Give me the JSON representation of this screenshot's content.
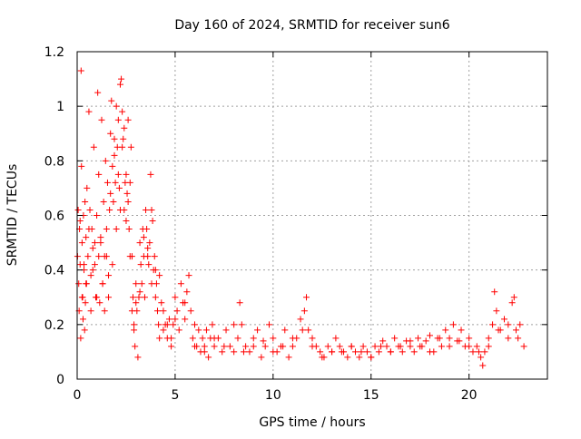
{
  "chart_data": {
    "type": "scatter",
    "title": "Day 160 of 2024, SRMTID for receiver sun6",
    "xlabel": "GPS time / hours",
    "ylabel": "SRMTID / TECUs",
    "xlim": [
      0,
      24
    ],
    "ylim": [
      0,
      1.2
    ],
    "grid": true,
    "marker": "+",
    "marker_color": "#ff0000",
    "x_ticks": [
      0,
      5,
      10,
      15,
      20
    ],
    "x_tick_labels": [
      "0",
      "5",
      "10",
      "15",
      "20"
    ],
    "y_ticks": [
      0,
      0.2,
      0.4,
      0.6,
      0.8,
      1.0,
      1.2
    ],
    "y_tick_labels": [
      "0",
      "0.2",
      "0.4",
      "0.6",
      "0.8",
      "1",
      "1.2"
    ],
    "series": [
      {
        "name": "SRMTID",
        "x": [
          0.02,
          0.05,
          0.08,
          0.1,
          0.12,
          0.15,
          0.18,
          0.2,
          0.22,
          0.25,
          0.28,
          0.3,
          0.32,
          0.35,
          0.38,
          0.4,
          0.42,
          0.45,
          0.48,
          0.5,
          0.55,
          0.6,
          0.65,
          0.7,
          0.75,
          0.8,
          0.85,
          0.9,
          0.95,
          1.0,
          1.05,
          1.1,
          1.15,
          1.2,
          1.25,
          1.3,
          1.35,
          1.4,
          1.45,
          1.5,
          1.55,
          1.6,
          1.65,
          1.7,
          1.75,
          1.8,
          1.85,
          1.9,
          1.95,
          2.0,
          2.05,
          2.1,
          2.15,
          2.2,
          2.25,
          2.3,
          2.35,
          2.4,
          2.45,
          2.5,
          2.55,
          2.6,
          2.65,
          2.7,
          2.75,
          2.8,
          2.85,
          2.9,
          2.95,
          3.0,
          3.05,
          3.1,
          3.15,
          3.2,
          3.25,
          3.3,
          3.35,
          3.4,
          3.45,
          3.5,
          3.55,
          3.6,
          3.65,
          3.7,
          3.75,
          3.8,
          3.85,
          3.9,
          3.95,
          4.0,
          4.05,
          4.1,
          4.15,
          4.2,
          4.3,
          4.4,
          4.5,
          4.6,
          4.7,
          4.8,
          4.9,
          5.0,
          5.1,
          5.2,
          5.3,
          5.4,
          5.5,
          5.6,
          5.7,
          5.8,
          5.9,
          6.0,
          6.1,
          6.2,
          6.3,
          6.4,
          6.5,
          6.6,
          6.7,
          6.8,
          6.9,
          7.0,
          7.2,
          7.4,
          7.6,
          7.8,
          8.0,
          8.2,
          8.3,
          8.4,
          8.6,
          8.8,
          9.0,
          9.2,
          9.4,
          9.6,
          9.8,
          10.0,
          10.2,
          10.4,
          10.6,
          10.8,
          11.0,
          11.2,
          11.4,
          11.6,
          11.8,
          12.0,
          12.2,
          12.4,
          12.6,
          12.8,
          13.0,
          13.2,
          13.4,
          13.6,
          13.8,
          14.0,
          14.2,
          14.4,
          14.6,
          14.8,
          15.0,
          15.2,
          15.4,
          15.6,
          15.8,
          16.0,
          16.2,
          16.4,
          16.6,
          16.8,
          17.0,
          17.2,
          17.4,
          17.6,
          17.8,
          18.0,
          18.2,
          18.4,
          18.6,
          18.8,
          19.0,
          19.2,
          19.4,
          19.6,
          19.8,
          20.0,
          20.2,
          20.4,
          20.6,
          20.8,
          21.0,
          21.2,
          21.4,
          21.6,
          21.8,
          22.0,
          22.2,
          22.4,
          22.6,
          22.8,
          0.15,
          0.25,
          0.35,
          0.45,
          0.6,
          0.7,
          0.8,
          0.9,
          1.0,
          1.1,
          1.2,
          1.3,
          1.4,
          1.5,
          1.6,
          1.7,
          1.8,
          1.9,
          2.0,
          2.1,
          2.2,
          2.3,
          2.4,
          2.5,
          2.6,
          2.7,
          2.8,
          2.9,
          3.0,
          3.2,
          3.4,
          3.6,
          3.8,
          4.0,
          4.2,
          4.4,
          4.6,
          4.8,
          5.0,
          5.5,
          6.0,
          6.5,
          7.0,
          7.5,
          8.0,
          8.5,
          9.0,
          9.5,
          10.0,
          10.5,
          11.0,
          11.5,
          12.0,
          12.5,
          13.0,
          13.5,
          14.0,
          14.5,
          15.0,
          15.5,
          16.0,
          16.5,
          17.0,
          17.5,
          18.0,
          18.5,
          19.0,
          19.5,
          20.0,
          20.5,
          21.0,
          21.5,
          22.0,
          22.5,
          21.3,
          22.3,
          20.7,
          11.7
        ],
        "y": [
          0.45,
          0.62,
          0.35,
          0.25,
          0.55,
          0.42,
          0.15,
          1.13,
          0.78,
          0.5,
          0.3,
          0.22,
          0.6,
          0.4,
          0.18,
          0.65,
          0.28,
          0.52,
          0.35,
          0.7,
          0.45,
          0.98,
          0.62,
          0.38,
          0.55,
          0.48,
          0.85,
          0.42,
          0.3,
          0.6,
          1.05,
          0.75,
          0.28,
          0.5,
          0.95,
          0.35,
          0.65,
          0.45,
          0.8,
          0.55,
          0.72,
          0.38,
          0.62,
          0.9,
          1.02,
          0.78,
          0.65,
          0.88,
          0.72,
          1.0,
          0.85,
          0.95,
          0.7,
          1.08,
          1.1,
          0.98,
          0.88,
          0.62,
          0.72,
          0.58,
          0.68,
          0.95,
          0.55,
          0.72,
          0.85,
          0.45,
          0.3,
          0.18,
          0.12,
          0.35,
          0.25,
          0.08,
          0.3,
          0.5,
          0.42,
          0.35,
          0.55,
          0.45,
          0.3,
          0.62,
          0.55,
          0.48,
          0.42,
          0.5,
          0.75,
          0.62,
          0.58,
          0.4,
          0.45,
          0.3,
          0.35,
          0.25,
          0.2,
          0.38,
          0.28,
          0.18,
          0.2,
          0.15,
          0.22,
          0.12,
          0.2,
          0.3,
          0.25,
          0.18,
          0.35,
          0.28,
          0.22,
          0.32,
          0.38,
          0.25,
          0.15,
          0.2,
          0.12,
          0.18,
          0.1,
          0.15,
          0.12,
          0.18,
          0.08,
          0.15,
          0.2,
          0.12,
          0.15,
          0.1,
          0.18,
          0.12,
          0.1,
          0.15,
          0.28,
          0.2,
          0.12,
          0.1,
          0.15,
          0.18,
          0.08,
          0.12,
          0.2,
          0.15,
          0.1,
          0.12,
          0.18,
          0.08,
          0.12,
          0.15,
          0.22,
          0.25,
          0.18,
          0.15,
          0.12,
          0.1,
          0.08,
          0.12,
          0.1,
          0.15,
          0.12,
          0.1,
          0.08,
          0.12,
          0.1,
          0.08,
          0.12,
          0.1,
          0.08,
          0.12,
          0.1,
          0.14,
          0.12,
          0.1,
          0.15,
          0.12,
          0.1,
          0.14,
          0.12,
          0.1,
          0.15,
          0.12,
          0.14,
          0.16,
          0.1,
          0.15,
          0.12,
          0.18,
          0.15,
          0.2,
          0.14,
          0.18,
          0.12,
          0.15,
          0.1,
          0.12,
          0.08,
          0.1,
          0.12,
          0.2,
          0.25,
          0.18,
          0.22,
          0.15,
          0.28,
          0.18,
          0.2,
          0.12,
          0.58,
          0.3,
          0.42,
          0.35,
          0.55,
          0.25,
          0.4,
          0.5,
          0.3,
          0.45,
          0.52,
          0.35,
          0.25,
          0.45,
          0.3,
          0.68,
          0.42,
          0.82,
          0.55,
          0.75,
          0.62,
          0.85,
          0.92,
          0.75,
          0.65,
          0.45,
          0.25,
          0.2,
          0.28,
          0.32,
          0.52,
          0.45,
          0.35,
          0.4,
          0.15,
          0.25,
          0.2,
          0.15,
          0.22,
          0.28,
          0.12,
          0.1,
          0.15,
          0.12,
          0.2,
          0.1,
          0.12,
          0.14,
          0.1,
          0.12,
          0.15,
          0.18,
          0.12,
          0.08,
          0.1,
          0.1,
          0.12,
          0.1,
          0.08,
          0.12,
          0.1,
          0.12,
          0.14,
          0.12,
          0.1,
          0.15,
          0.12,
          0.14,
          0.12,
          0.1,
          0.15,
          0.18,
          0.2,
          0.15,
          0.32,
          0.3,
          0.05,
          0.3
        ]
      }
    ]
  }
}
